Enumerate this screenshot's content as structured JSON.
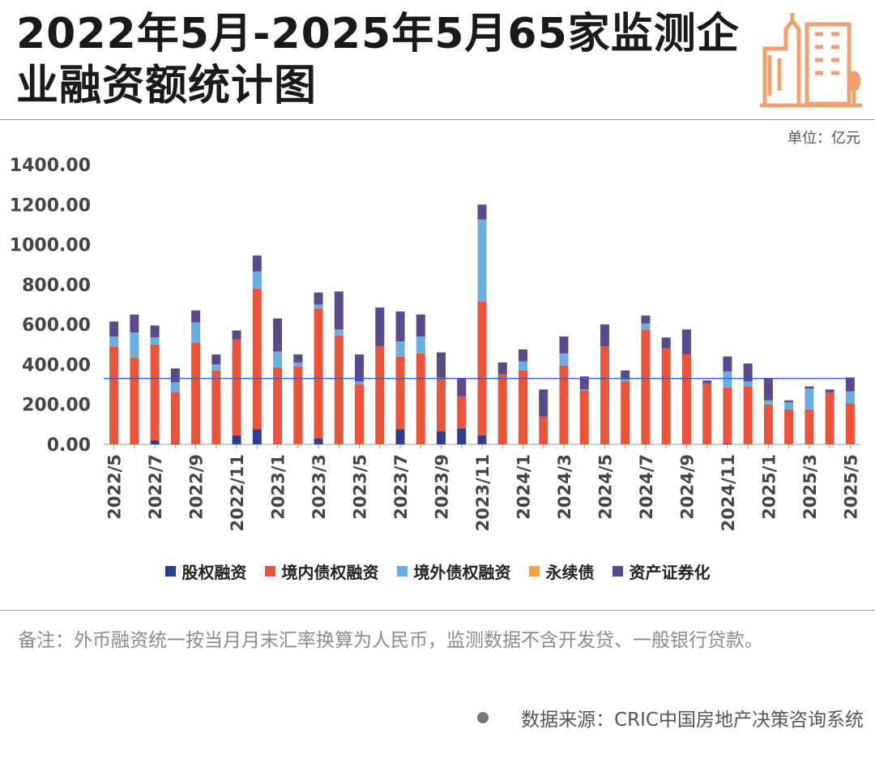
{
  "title": "2022年5月-2025年5月65家监测企业融资额统计图",
  "unit": "单位：亿元",
  "note": "备注：外币融资统一按当月月末汇率换算为人民币，监测数据不含开发贷、一般银行贷款。",
  "source": "数据来源：CRIC中国房地产决策咨询系统",
  "colors": {
    "equity": "#2f3d8f",
    "domestic_bond": "#e8553a",
    "overseas_bond": "#6aaee0",
    "perpetual": "#f2a43a",
    "abs": "#5b4a8a",
    "avg_line": "#3a5cc4",
    "logo": "#f0a070"
  },
  "chart_data": {
    "type": "bar",
    "stacked": true,
    "categories": [
      "2022/5",
      "2022/6",
      "2022/7",
      "2022/8",
      "2022/9",
      "2022/10",
      "2022/11",
      "2022/12",
      "2023/1",
      "2023/2",
      "2023/3",
      "2023/4",
      "2023/5",
      "2023/6",
      "2023/7",
      "2023/8",
      "2023/9",
      "2023/10",
      "2023/11",
      "2023/12",
      "2024/1",
      "2024/2",
      "2024/3",
      "2024/4",
      "2024/5",
      "2024/6",
      "2024/7",
      "2024/8",
      "2024/9",
      "2024/10",
      "2024/11",
      "2024/12",
      "2025/1",
      "2025/2",
      "2025/3",
      "2025/4",
      "2025/5"
    ],
    "tick_labels": [
      "2022/5",
      "",
      "2022/7",
      "",
      "2022/9",
      "",
      "2022/11",
      "",
      "2023/1",
      "",
      "2023/3",
      "",
      "2023/5",
      "",
      "2023/7",
      "",
      "2023/9",
      "",
      "2023/11",
      "",
      "2024/1",
      "",
      "2024/3",
      "",
      "2024/5",
      "",
      "2024/7",
      "",
      "2024/9",
      "",
      "2024/11",
      "",
      "2025/1",
      "",
      "2025/3",
      "",
      "2025/5"
    ],
    "series": [
      {
        "name": "股权融资",
        "color_key": "equity",
        "values": [
          0,
          0,
          20,
          5,
          0,
          0,
          45,
          75,
          0,
          0,
          30,
          0,
          0,
          0,
          75,
          0,
          65,
          80,
          45,
          0,
          0,
          0,
          0,
          0,
          0,
          0,
          0,
          0,
          0,
          0,
          5,
          0,
          0,
          0,
          0,
          0,
          0
        ]
      },
      {
        "name": "境内债权融资",
        "color_key": "domestic_bond",
        "values": [
          490,
          435,
          480,
          255,
          510,
          370,
          480,
          705,
          385,
          390,
          650,
          545,
          300,
          490,
          365,
          455,
          270,
          160,
          670,
          350,
          370,
          140,
          395,
          270,
          490,
          315,
          575,
          480,
          450,
          305,
          280,
          290,
          200,
          175,
          175,
          260,
          205
        ]
      },
      {
        "name": "境外债权融资",
        "color_key": "overseas_bond",
        "values": [
          50,
          125,
          35,
          50,
          100,
          30,
          0,
          85,
          80,
          20,
          20,
          30,
          15,
          0,
          75,
          85,
          0,
          0,
          410,
          0,
          45,
          0,
          60,
          5,
          0,
          10,
          30,
          0,
          0,
          0,
          80,
          25,
          20,
          35,
          105,
          0,
          60
        ]
      },
      {
        "name": "永续债",
        "color_key": "perpetual",
        "values": [
          0,
          0,
          0,
          0,
          0,
          0,
          0,
          0,
          0,
          0,
          0,
          0,
          0,
          0,
          0,
          0,
          0,
          0,
          0,
          0,
          0,
          0,
          0,
          0,
          0,
          0,
          0,
          0,
          0,
          0,
          0,
          0,
          0,
          0,
          0,
          0,
          0
        ]
      },
      {
        "name": "资产证券化",
        "color_key": "abs",
        "values": [
          75,
          90,
          60,
          70,
          60,
          50,
          45,
          80,
          165,
          40,
          60,
          190,
          135,
          195,
          150,
          110,
          125,
          90,
          75,
          60,
          60,
          135,
          85,
          65,
          110,
          45,
          40,
          55,
          125,
          15,
          75,
          90,
          110,
          10,
          10,
          15,
          70
        ]
      }
    ],
    "average_line": 330,
    "ylim": [
      0,
      1400
    ],
    "yticks": [
      "1400.00",
      "1200.00",
      "1000.00",
      "800.00",
      "600.00",
      "400.00",
      "200.00",
      "0.00"
    ],
    "ytick_values": [
      1400,
      1200,
      1000,
      800,
      600,
      400,
      200,
      0
    ],
    "legend_position": "bottom",
    "grid": false
  }
}
